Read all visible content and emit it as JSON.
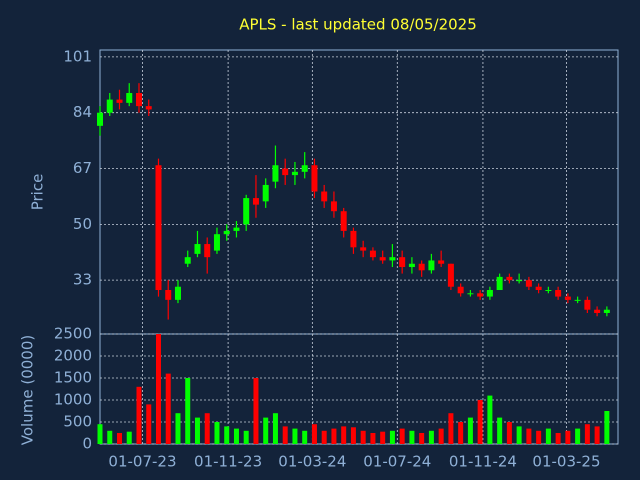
{
  "chart_data": {
    "type": "candlestick",
    "title": "APLS - last updated 08/05/2025",
    "ylabel": "Price",
    "y2label": "Volume (0000)",
    "up_color": "#00ff00",
    "down_color": "#ff0000",
    "xlim": [
      "2023-05-01",
      "2025-05-14"
    ],
    "xticks": [
      {
        "value": "2023-07-01",
        "label": "01-07-23"
      },
      {
        "value": "2023-11-01",
        "label": "01-11-23"
      },
      {
        "value": "2024-03-01",
        "label": "01-03-24"
      },
      {
        "value": "2024-07-01",
        "label": "01-07-24"
      },
      {
        "value": "2024-11-01",
        "label": "01-11-24"
      },
      {
        "value": "2025-03-01",
        "label": "01-03-25"
      }
    ],
    "ylim": [
      16.6,
      103.1
    ],
    "yticks": [
      33,
      50,
      67,
      84,
      101
    ],
    "y2lim": [
      0,
      2500
    ],
    "y2ticks": [
      0,
      500,
      1000,
      1500,
      2000,
      2500
    ],
    "grid": true,
    "x": [
      "2023-05-01",
      "2023-05-15",
      "2023-05-29",
      "2023-06-12",
      "2023-06-26",
      "2023-07-10",
      "2023-07-24",
      "2023-08-07",
      "2023-08-21",
      "2023-09-04",
      "2023-09-18",
      "2023-10-02",
      "2023-10-16",
      "2023-10-30",
      "2023-11-13",
      "2023-11-27",
      "2023-12-11",
      "2023-12-25",
      "2024-01-08",
      "2024-01-22",
      "2024-02-05",
      "2024-02-19",
      "2024-03-04",
      "2024-03-18",
      "2024-04-01",
      "2024-04-15",
      "2024-04-29",
      "2024-05-13",
      "2024-05-27",
      "2024-06-10",
      "2024-06-24",
      "2024-07-08",
      "2024-07-22",
      "2024-08-05",
      "2024-08-19",
      "2024-09-02",
      "2024-09-16",
      "2024-09-30",
      "2024-10-14",
      "2024-10-28",
      "2024-11-11",
      "2024-11-25",
      "2024-12-09",
      "2024-12-23",
      "2025-01-06",
      "2025-01-20",
      "2025-02-03",
      "2025-02-17",
      "2025-03-03",
      "2025-03-17",
      "2025-03-31",
      "2025-04-14",
      "2025-04-28"
    ],
    "open": [
      80,
      84,
      88,
      87,
      90,
      86,
      68,
      30,
      27,
      38,
      41,
      44,
      42,
      47,
      48,
      50,
      58,
      57,
      63,
      67,
      65,
      66,
      68,
      60,
      57,
      54,
      48,
      43,
      42,
      40,
      39,
      40,
      37,
      38,
      36,
      39,
      38,
      31,
      29,
      29,
      28,
      30,
      34,
      33,
      33,
      31,
      30,
      30,
      28,
      27,
      27,
      24,
      23
    ],
    "high": [
      86,
      90,
      91,
      93,
      93,
      88,
      70,
      33,
      33,
      42,
      48,
      46,
      49,
      50,
      51,
      59,
      65,
      64,
      74,
      70,
      69,
      72,
      70,
      62,
      60,
      55,
      49,
      45,
      43,
      42,
      44,
      42,
      40,
      39,
      41,
      42,
      38,
      32,
      30,
      30,
      31,
      35,
      35,
      35,
      34,
      32,
      31,
      31,
      29,
      28,
      28,
      25,
      25
    ],
    "low": [
      77,
      83,
      85,
      86,
      84,
      83,
      28,
      21,
      26,
      37,
      40,
      35,
      41,
      45,
      46,
      48,
      52,
      55,
      61,
      62,
      62,
      64,
      58,
      55,
      52,
      46,
      41,
      40,
      39,
      38,
      37,
      35,
      35,
      34,
      35,
      37,
      30,
      28,
      28,
      27,
      27,
      30,
      32,
      32,
      30,
      29,
      29,
      27,
      26,
      26,
      23,
      22,
      22
    ],
    "close": [
      84,
      88,
      87,
      90,
      86,
      85,
      30,
      27,
      31,
      40,
      44,
      40,
      47,
      48,
      49,
      58,
      56,
      62,
      68,
      65,
      66,
      68,
      60,
      57,
      54,
      48,
      43,
      42,
      40,
      39,
      40,
      37,
      38,
      36,
      39,
      38,
      31,
      29,
      29,
      28,
      30,
      34,
      33,
      33,
      31,
      30,
      30,
      28,
      27,
      27,
      24,
      23,
      24
    ],
    "volume": [
      450,
      300,
      250,
      280,
      1300,
      900,
      2500,
      1600,
      700,
      1500,
      600,
      700,
      500,
      400,
      350,
      300,
      1500,
      600,
      700,
      400,
      350,
      300,
      450,
      300,
      350,
      400,
      380,
      300,
      250,
      280,
      300,
      350,
      300,
      250,
      300,
      350,
      700,
      500,
      600,
      1000,
      1100,
      600,
      500,
      400,
      350,
      300,
      350,
      250,
      300,
      350,
      450,
      400,
      750
    ]
  }
}
